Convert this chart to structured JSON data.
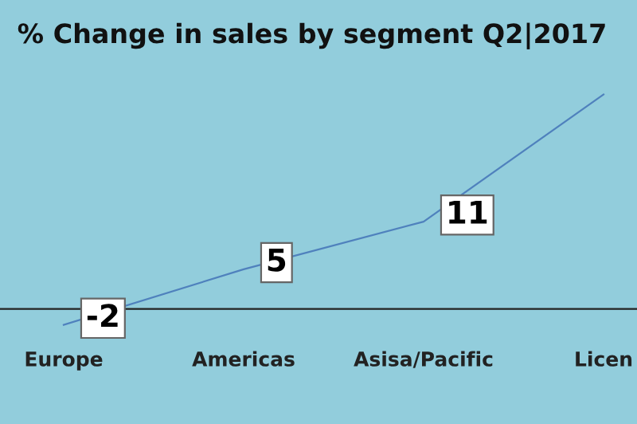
{
  "chart_data": {
    "type": "line",
    "title": "% Change in sales by segment Q2|2017",
    "categories": [
      "Europe",
      "Americas",
      "Asisa/Pacific",
      "Licen"
    ],
    "series": [
      {
        "color": "#4f81bd",
        "values": [
          -2,
          5,
          11,
          27
        ],
        "value_labels": [
          "-2",
          "5",
          "11",
          null
        ]
      }
    ],
    "tick_labels": "x",
    "grid": false,
    "legend": false,
    "marker": "none",
    "line_style": "solid"
  }
}
